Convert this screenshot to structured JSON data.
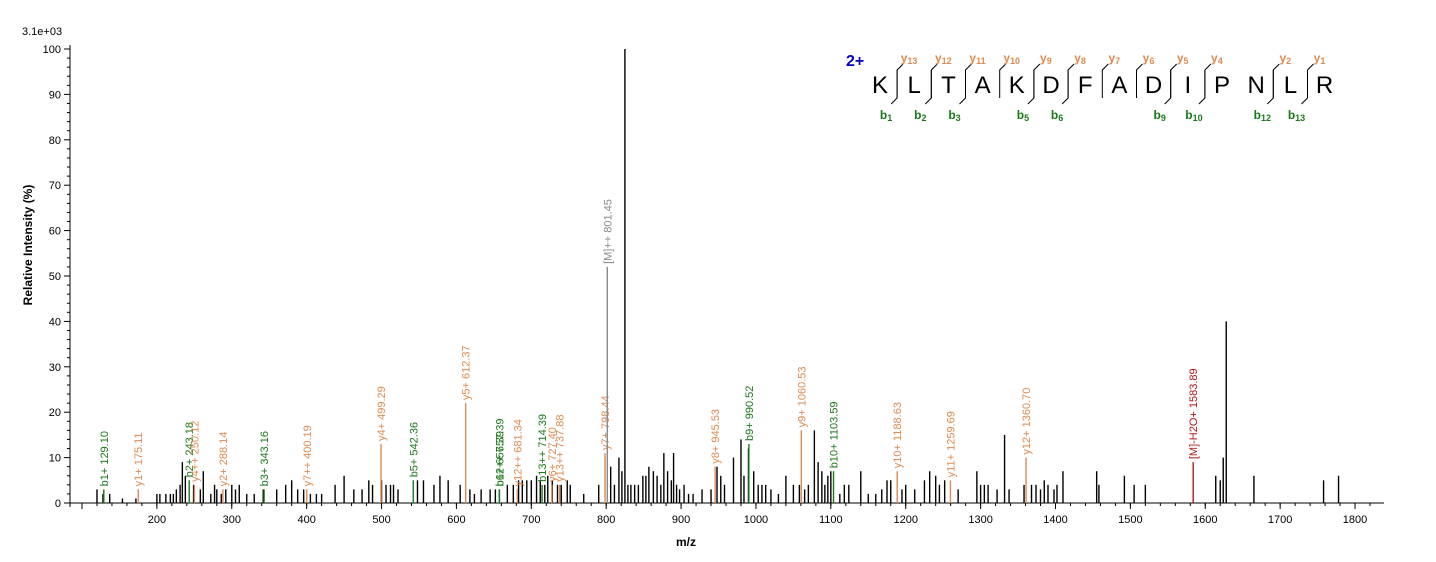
{
  "chart_data": {
    "type": "bar",
    "subtype": "mass-spectrum",
    "scale_label": "3.1e+03",
    "xlabel": "m/z",
    "ylabel": "Relative   Intensity (%)",
    "xlim": [
      100,
      1820
    ],
    "ylim": [
      0,
      100
    ],
    "x_ticks": [
      100,
      200,
      300,
      400,
      500,
      600,
      700,
      800,
      900,
      1000,
      1100,
      1200,
      1300,
      1400,
      1500,
      1600,
      1700,
      1800
    ],
    "y_ticks": [
      0,
      10,
      20,
      30,
      40,
      50,
      60,
      70,
      80,
      90,
      100
    ],
    "colors": {
      "b_ion": "#1a7a1a",
      "y_ion": "#e08a50",
      "precursor": "#888888",
      "loss": "#b01818",
      "unassigned": "#000000",
      "charge": "#0000cc"
    },
    "peaks": [
      [
        120,
        3
      ],
      [
        128,
        2
      ],
      [
        137,
        2
      ],
      [
        154,
        1
      ],
      [
        172,
        1
      ],
      [
        200,
        2
      ],
      [
        204,
        2
      ],
      [
        212,
        2
      ],
      [
        218,
        2
      ],
      [
        222,
        2
      ],
      [
        226,
        3
      ],
      [
        231,
        4
      ],
      [
        234,
        9
      ],
      [
        238,
        6
      ],
      [
        249,
        4
      ],
      [
        258,
        3
      ],
      [
        262,
        7
      ],
      [
        272,
        2
      ],
      [
        277,
        4
      ],
      [
        280,
        3
      ],
      [
        286,
        2
      ],
      [
        292,
        3
      ],
      [
        300,
        4
      ],
      [
        305,
        3
      ],
      [
        310,
        4
      ],
      [
        320,
        2
      ],
      [
        330,
        2
      ],
      [
        342,
        3
      ],
      [
        360,
        3
      ],
      [
        372,
        4
      ],
      [
        380,
        5
      ],
      [
        388,
        3
      ],
      [
        396,
        3
      ],
      [
        405,
        2
      ],
      [
        413,
        2
      ],
      [
        420,
        2
      ],
      [
        438,
        4
      ],
      [
        450,
        6
      ],
      [
        463,
        3
      ],
      [
        474,
        3
      ],
      [
        483,
        5
      ],
      [
        488,
        4
      ],
      [
        500,
        5
      ],
      [
        506,
        4
      ],
      [
        512,
        4
      ],
      [
        516,
        4
      ],
      [
        522,
        3
      ],
      [
        548,
        5
      ],
      [
        556,
        5
      ],
      [
        570,
        4
      ],
      [
        578,
        6
      ],
      [
        589,
        5
      ],
      [
        605,
        4
      ],
      [
        618,
        3
      ],
      [
        624,
        2
      ],
      [
        633,
        3
      ],
      [
        645,
        3
      ],
      [
        652,
        3
      ],
      [
        668,
        4
      ],
      [
        676,
        4
      ],
      [
        683,
        5
      ],
      [
        688,
        5
      ],
      [
        694,
        5
      ],
      [
        700,
        5
      ],
      [
        707,
        6
      ],
      [
        712,
        5
      ],
      [
        718,
        4
      ],
      [
        722,
        6
      ],
      [
        728,
        5
      ],
      [
        735,
        4
      ],
      [
        740,
        4
      ],
      [
        748,
        5
      ],
      [
        752,
        4
      ],
      [
        770,
        2
      ],
      [
        790,
        4
      ],
      [
        806,
        8
      ],
      [
        811,
        4
      ],
      [
        817,
        10
      ],
      [
        821,
        7
      ],
      [
        825,
        100
      ],
      [
        829,
        4
      ],
      [
        833,
        4
      ],
      [
        838,
        4
      ],
      [
        843,
        4
      ],
      [
        849,
        6
      ],
      [
        853,
        6
      ],
      [
        857,
        8
      ],
      [
        863,
        7
      ],
      [
        868,
        6
      ],
      [
        873,
        4
      ],
      [
        877,
        11
      ],
      [
        882,
        7
      ],
      [
        887,
        5
      ],
      [
        890,
        11
      ],
      [
        894,
        4
      ],
      [
        898,
        3
      ],
      [
        904,
        4
      ],
      [
        910,
        2
      ],
      [
        916,
        2
      ],
      [
        928,
        3
      ],
      [
        940,
        3
      ],
      [
        948,
        8
      ],
      [
        953,
        6
      ],
      [
        958,
        4
      ],
      [
        970,
        10
      ],
      [
        980,
        14
      ],
      [
        984,
        6
      ],
      [
        990,
        12
      ],
      [
        997,
        7
      ],
      [
        1003,
        4
      ],
      [
        1008,
        4
      ],
      [
        1013,
        4
      ],
      [
        1020,
        3
      ],
      [
        1030,
        2
      ],
      [
        1040,
        6
      ],
      [
        1050,
        4
      ],
      [
        1058,
        4
      ],
      [
        1065,
        3
      ],
      [
        1070,
        4
      ],
      [
        1078,
        16
      ],
      [
        1083,
        9
      ],
      [
        1088,
        7
      ],
      [
        1092,
        4
      ],
      [
        1096,
        6
      ],
      [
        1100,
        7
      ],
      [
        1112,
        2
      ],
      [
        1118,
        4
      ],
      [
        1124,
        4
      ],
      [
        1140,
        7
      ],
      [
        1150,
        2
      ],
      [
        1160,
        2
      ],
      [
        1168,
        3
      ],
      [
        1175,
        5
      ],
      [
        1180,
        5
      ],
      [
        1195,
        3
      ],
      [
        1200,
        4
      ],
      [
        1212,
        3
      ],
      [
        1225,
        5
      ],
      [
        1232,
        7
      ],
      [
        1240,
        6
      ],
      [
        1245,
        4
      ],
      [
        1252,
        5
      ],
      [
        1270,
        3
      ],
      [
        1295,
        7
      ],
      [
        1300,
        4
      ],
      [
        1305,
        4
      ],
      [
        1310,
        4
      ],
      [
        1322,
        3
      ],
      [
        1332,
        15
      ],
      [
        1338,
        3
      ],
      [
        1358,
        4
      ],
      [
        1368,
        4
      ],
      [
        1374,
        4
      ],
      [
        1380,
        3
      ],
      [
        1385,
        5
      ],
      [
        1390,
        4
      ],
      [
        1398,
        3
      ],
      [
        1402,
        4
      ],
      [
        1410,
        7
      ],
      [
        1455,
        7
      ],
      [
        1458,
        4
      ],
      [
        1492,
        6
      ],
      [
        1505,
        4
      ],
      [
        1520,
        4
      ],
      [
        1614,
        6
      ],
      [
        1620,
        5
      ],
      [
        1624,
        10
      ],
      [
        1628,
        40
      ],
      [
        1665,
        6
      ],
      [
        1758,
        5
      ],
      [
        1778,
        6
      ]
    ],
    "labeled_peaks": [
      {
        "mz": 129.1,
        "intensity": 3,
        "label": "b1+ 129.10",
        "type": "b"
      },
      {
        "mz": 175.11,
        "intensity": 3,
        "label": "y1+ 175.11",
        "type": "y"
      },
      {
        "mz": 243.18,
        "intensity": 5,
        "label": "b2+ 243.18",
        "type": "b"
      },
      {
        "mz": 250.12,
        "intensity": 4,
        "label": "y4++ 250.12",
        "type": "y"
      },
      {
        "mz": 288.14,
        "intensity": 3,
        "label": "y2+ 288.14",
        "type": "y"
      },
      {
        "mz": 343.16,
        "intensity": 3,
        "label": "b3+ 343.16",
        "type": "b"
      },
      {
        "mz": 400.19,
        "intensity": 3,
        "label": "y7++ 400.19",
        "type": "y"
      },
      {
        "mz": 499.29,
        "intensity": 13,
        "label": "y4+ 499.29",
        "type": "y"
      },
      {
        "mz": 542.36,
        "intensity": 5,
        "label": "b5+ 542.36",
        "type": "b"
      },
      {
        "mz": 612.37,
        "intensity": 22,
        "label": "y5+ 612.37",
        "type": "y"
      },
      {
        "mz": 657.39,
        "intensity": 3,
        "label": "b6+ 657.39",
        "type": "b"
      },
      {
        "mz": 657.39,
        "intensity": 3,
        "label": "b12++ 657.39",
        "type": "b"
      },
      {
        "mz": 681.34,
        "intensity": 3,
        "label": "y12++ 681.34",
        "type": "y"
      },
      {
        "mz": 714.39,
        "intensity": 4,
        "label": "b13++ 714.39",
        "type": "b"
      },
      {
        "mz": 727.4,
        "intensity": 4,
        "label": "y6+ 727.40",
        "type": "y"
      },
      {
        "mz": 737.88,
        "intensity": 4,
        "label": "y13++ 737.88",
        "type": "y"
      },
      {
        "mz": 798.44,
        "intensity": 11,
        "label": "y7+ 798.44",
        "type": "y"
      },
      {
        "mz": 801.45,
        "intensity": 52,
        "label": "[M]++ 801.45",
        "type": "precursor"
      },
      {
        "mz": 945.53,
        "intensity": 8,
        "label": "y8+ 945.53",
        "type": "y"
      },
      {
        "mz": 990.52,
        "intensity": 13,
        "label": "b9+ 990.52",
        "type": "b"
      },
      {
        "mz": 1060.53,
        "intensity": 16,
        "label": "y9+ 1060.53",
        "type": "y"
      },
      {
        "mz": 1103.59,
        "intensity": 7,
        "label": "b10+ 1103.59",
        "type": "b"
      },
      {
        "mz": 1188.63,
        "intensity": 7,
        "label": "y10+ 1188.63",
        "type": "y"
      },
      {
        "mz": 1259.69,
        "intensity": 5,
        "label": "y11+ 1259.69",
        "type": "y"
      },
      {
        "mz": 1360.7,
        "intensity": 10,
        "label": "y12+ 1360.70",
        "type": "y"
      },
      {
        "mz": 1583.89,
        "intensity": 9,
        "label": "[M]-H2O+ 1583.89",
        "type": "loss"
      }
    ]
  },
  "sequence": {
    "charge": "2+",
    "residues": [
      "K",
      "L",
      "T",
      "A",
      "K",
      "D",
      "F",
      "A",
      "D",
      "I",
      "P",
      "N",
      "L",
      "R"
    ],
    "y_ions": [
      {
        "after": 0,
        "ion": "y",
        "n": "13"
      },
      {
        "after": 1,
        "ion": "y",
        "n": "12"
      },
      {
        "after": 2,
        "ion": "y",
        "n": "11"
      },
      {
        "after": 3,
        "ion": "y",
        "n": "10"
      },
      {
        "after": 4,
        "ion": "y",
        "n": "9"
      },
      {
        "after": 5,
        "ion": "y",
        "n": "8"
      },
      {
        "after": 6,
        "ion": "y",
        "n": "7"
      },
      {
        "after": 7,
        "ion": "y",
        "n": "6"
      },
      {
        "after": 8,
        "ion": "y",
        "n": "5"
      },
      {
        "after": 9,
        "ion": "y",
        "n": "4"
      },
      {
        "after": 11,
        "ion": "y",
        "n": "2"
      },
      {
        "after": 12,
        "ion": "y",
        "n": "1"
      }
    ],
    "b_ions": [
      {
        "after": 0,
        "ion": "b",
        "n": "1"
      },
      {
        "after": 1,
        "ion": "b",
        "n": "2"
      },
      {
        "after": 2,
        "ion": "b",
        "n": "3"
      },
      {
        "after": 4,
        "ion": "b",
        "n": "5"
      },
      {
        "after": 5,
        "ion": "b",
        "n": "6"
      },
      {
        "after": 8,
        "ion": "b",
        "n": "9"
      },
      {
        "after": 9,
        "ion": "b",
        "n": "10"
      },
      {
        "after": 11,
        "ion": "b",
        "n": "12"
      },
      {
        "after": 12,
        "ion": "b",
        "n": "13"
      }
    ]
  }
}
